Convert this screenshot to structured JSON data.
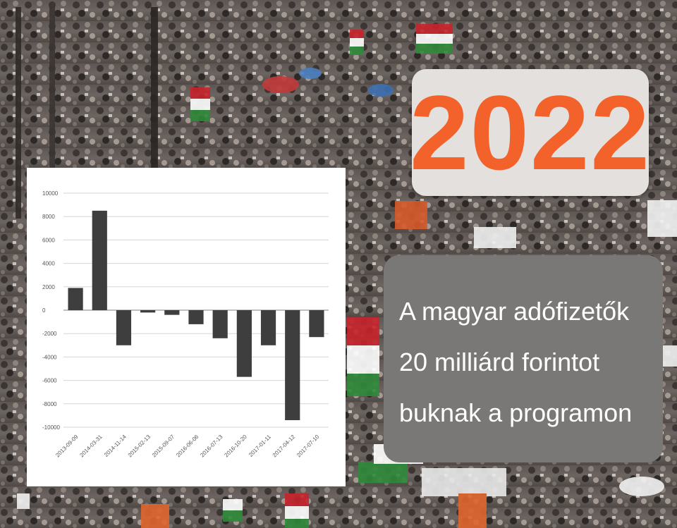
{
  "badge": {
    "year": "2022"
  },
  "caption": {
    "lines": [
      "A magyar adófizetők",
      "20 milliárd forintot",
      "buknak a programon"
    ]
  },
  "colors": {
    "year_text": "#f2622a",
    "year_box": "#e3e0de",
    "caption_box": "#7a7876",
    "bars": "#3e3e3e",
    "grid": "#d6d6d6"
  },
  "chart_data": {
    "type": "bar",
    "categories": [
      "2013-09-09",
      "2014-03-31",
      "2014-11-14",
      "2015-02-13",
      "2015-09-07",
      "2016-06-06",
      "2016-07-13",
      "2016-10-20",
      "2017-01-11",
      "2017-04-12",
      "2017-07-10"
    ],
    "values": [
      1900,
      8500,
      -3000,
      -200,
      -400,
      -1200,
      -2400,
      -5700,
      -3000,
      -9400,
      -2300
    ],
    "ylim": [
      -10000,
      10000
    ],
    "ytick_labels": [
      "10000",
      "8000",
      "6000",
      "4000",
      "2000",
      "0",
      "-2000",
      "-4000",
      "-6000",
      "-8000",
      "-10000"
    ],
    "grid": true,
    "title": "",
    "xlabel": "",
    "ylabel": ""
  }
}
